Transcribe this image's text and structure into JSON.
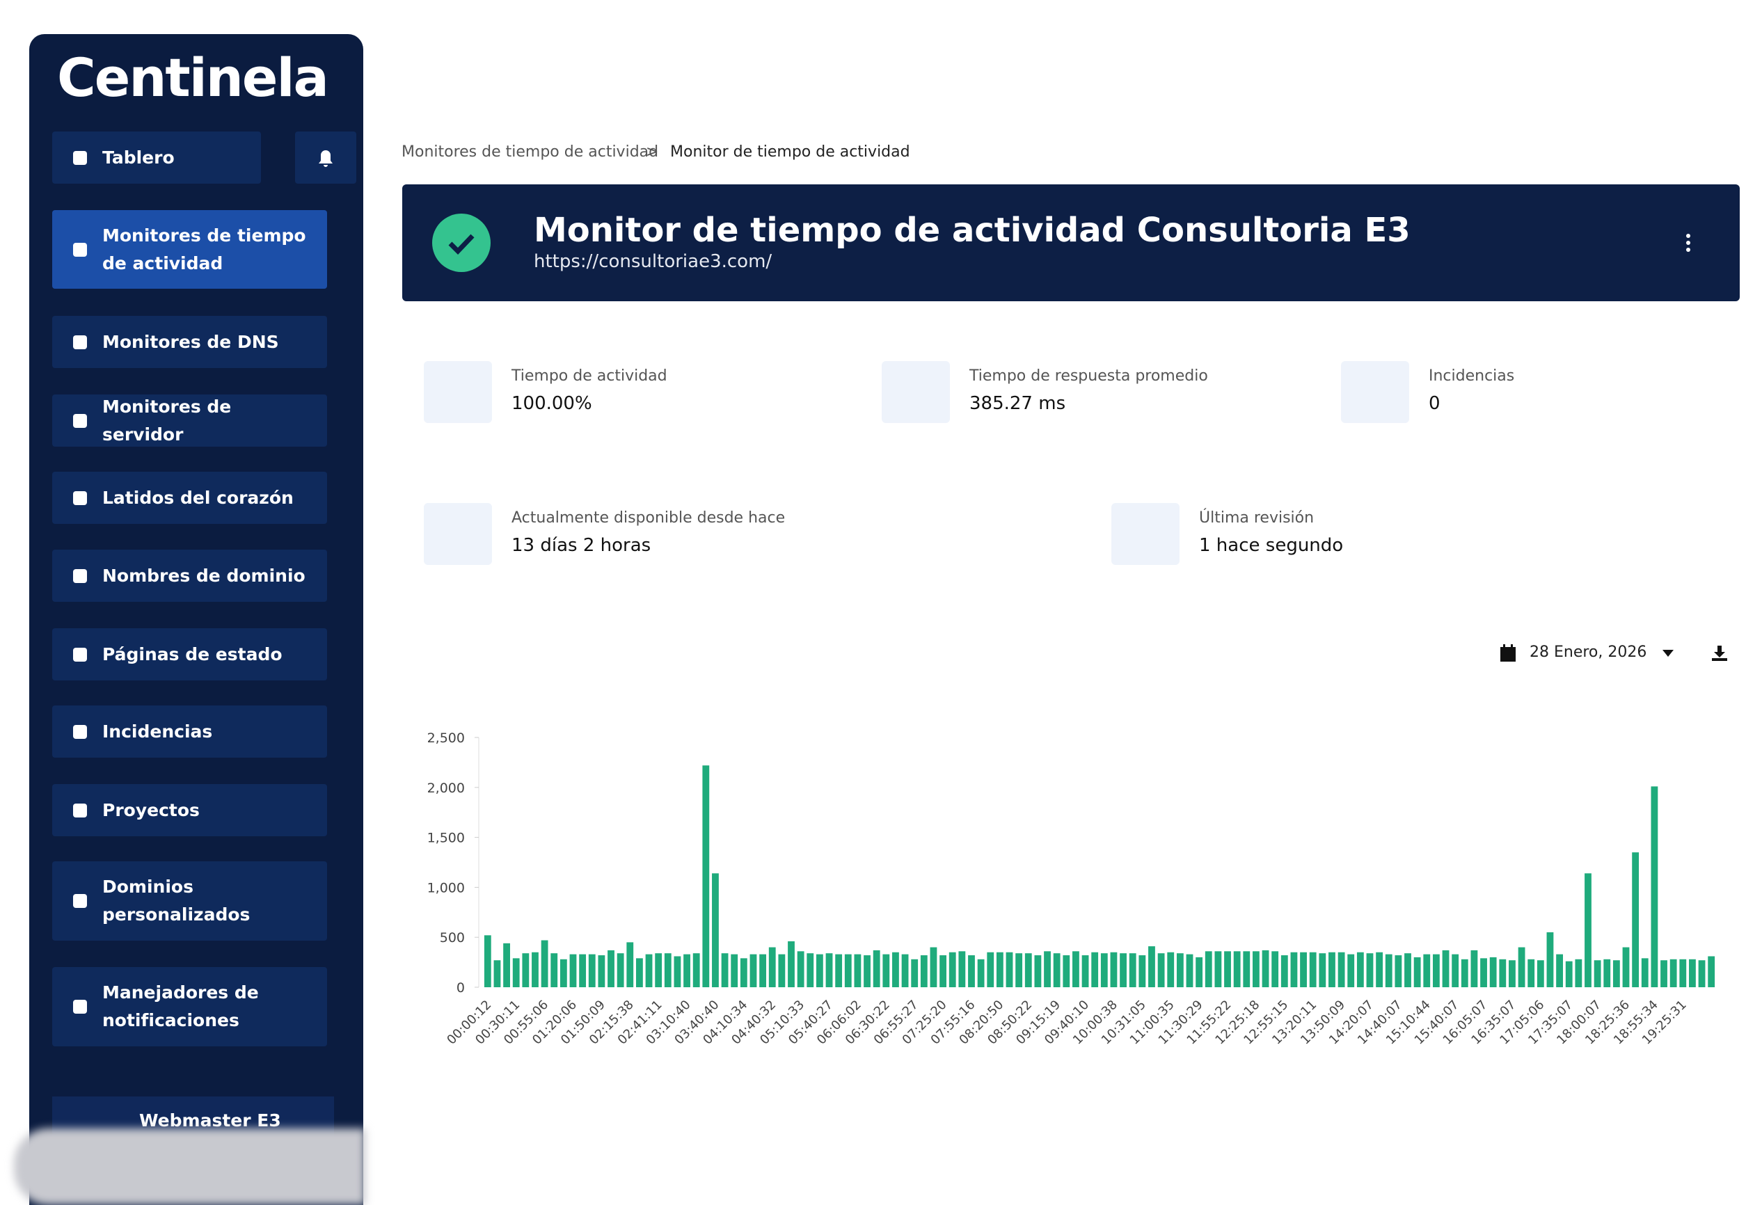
{
  "sidebar": {
    "brand": "Centinela",
    "items": [
      "Tablero",
      "Monitores de tiempo de actividad",
      "Monitores de DNS",
      "Monitores de servidor",
      "Latidos del corazón",
      "Nombres de dominio",
      "Páginas de estado",
      "Incidencias",
      "Proyectos",
      "Dominios personalizados",
      "Manejadores de notificaciones"
    ],
    "user": "Webmaster E3"
  },
  "breadcrumb": [
    "Monitores de tiempo de actividad",
    "Monitor de tiempo de actividad"
  ],
  "header": {
    "title": "Monitor de tiempo de actividad Consultoria E3",
    "url": "https://consultoriae3.com/"
  },
  "stats": [
    {
      "label": "Tiempo de actividad",
      "value": "100.00%"
    },
    {
      "label": "Tiempo de respuesta promedio",
      "value": "385.27 ms"
    },
    {
      "label": "Incidencias",
      "value": "0"
    },
    {
      "label": "Actualmente disponible desde hace",
      "value": "13 días 2 horas"
    },
    {
      "label": "Última revisión",
      "value": "1 hace segundo"
    }
  ],
  "date": "28 Enero, 2026",
  "chart_data": {
    "type": "bar",
    "color": "#1fab7c",
    "categories": [
      "00:00:12",
      null,
      null,
      "00:30:11",
      null,
      null,
      "00:55:06",
      null,
      null,
      "01:20:06",
      null,
      null,
      "01:50:09",
      null,
      null,
      "02:15:38",
      null,
      null,
      "02:41:11",
      null,
      null,
      "03:10:40",
      null,
      null,
      "03:40:40",
      null,
      null,
      "04:10:34",
      null,
      null,
      "04:40:32",
      null,
      null,
      "05:10:33",
      null,
      null,
      "05:40:27",
      null,
      null,
      "06:06:02",
      null,
      null,
      "06:30:22",
      null,
      null,
      "06:55:27",
      null,
      null,
      "07:25:20",
      null,
      null,
      "07:55:16",
      null,
      null,
      "08:20:50",
      null,
      null,
      "08:50:22",
      null,
      null,
      "09:15:19",
      null,
      null,
      "09:40:10",
      null,
      null,
      "10:00:38",
      null,
      null,
      "10:31:05",
      null,
      null,
      "11:00:35",
      null,
      null,
      "11:30:29",
      null,
      null,
      "11:55:22",
      null,
      null,
      "12:25:18",
      null,
      null,
      "12:55:15",
      null,
      null,
      "13:20:11",
      null,
      null,
      "13:50:09",
      null,
      null,
      "14:20:07",
      null,
      null,
      "14:40:07",
      null,
      null,
      "15:10:44",
      null,
      null,
      "15:40:07",
      null,
      null,
      "16:05:07",
      null,
      null,
      "16:35:07",
      null,
      null,
      "17:05:06",
      null,
      null,
      "17:35:07",
      null,
      null,
      "18:00:07",
      null,
      null,
      "18:25:36",
      null,
      null,
      "18:55:34",
      null,
      null,
      "19:25:31",
      null,
      null,
      null
    ],
    "values": [
      520,
      270,
      440,
      290,
      340,
      350,
      470,
      340,
      280,
      330,
      330,
      330,
      320,
      370,
      340,
      450,
      290,
      330,
      340,
      340,
      310,
      330,
      340,
      2220,
      1140,
      340,
      330,
      290,
      330,
      330,
      400,
      330,
      460,
      360,
      340,
      330,
      340,
      330,
      330,
      330,
      320,
      370,
      330,
      350,
      330,
      280,
      320,
      400,
      320,
      350,
      360,
      320,
      280,
      350,
      350,
      350,
      340,
      340,
      320,
      360,
      340,
      320,
      360,
      320,
      350,
      340,
      350,
      340,
      340,
      320,
      410,
      340,
      350,
      340,
      330,
      300,
      360,
      360,
      360,
      360,
      360,
      360,
      370,
      360,
      320,
      350,
      350,
      350,
      340,
      350,
      350,
      330,
      350,
      340,
      350,
      330,
      320,
      340,
      300,
      330,
      330,
      370,
      330,
      280,
      370,
      290,
      300,
      280,
      270,
      400,
      280,
      270,
      550,
      330,
      260,
      280,
      1140,
      270,
      280,
      270,
      400,
      1350,
      290,
      2010,
      270,
      280,
      280,
      280,
      270,
      310
    ],
    "ylim": [
      0,
      2500
    ],
    "yticks": [
      0,
      500,
      {
        "value": 1000,
        "label": "1,000"
      },
      {
        "value": 1500,
        "label": "1,500"
      },
      {
        "value": 2000,
        "label": "2,000"
      },
      {
        "value": 2500,
        "label": "2,500"
      }
    ]
  }
}
